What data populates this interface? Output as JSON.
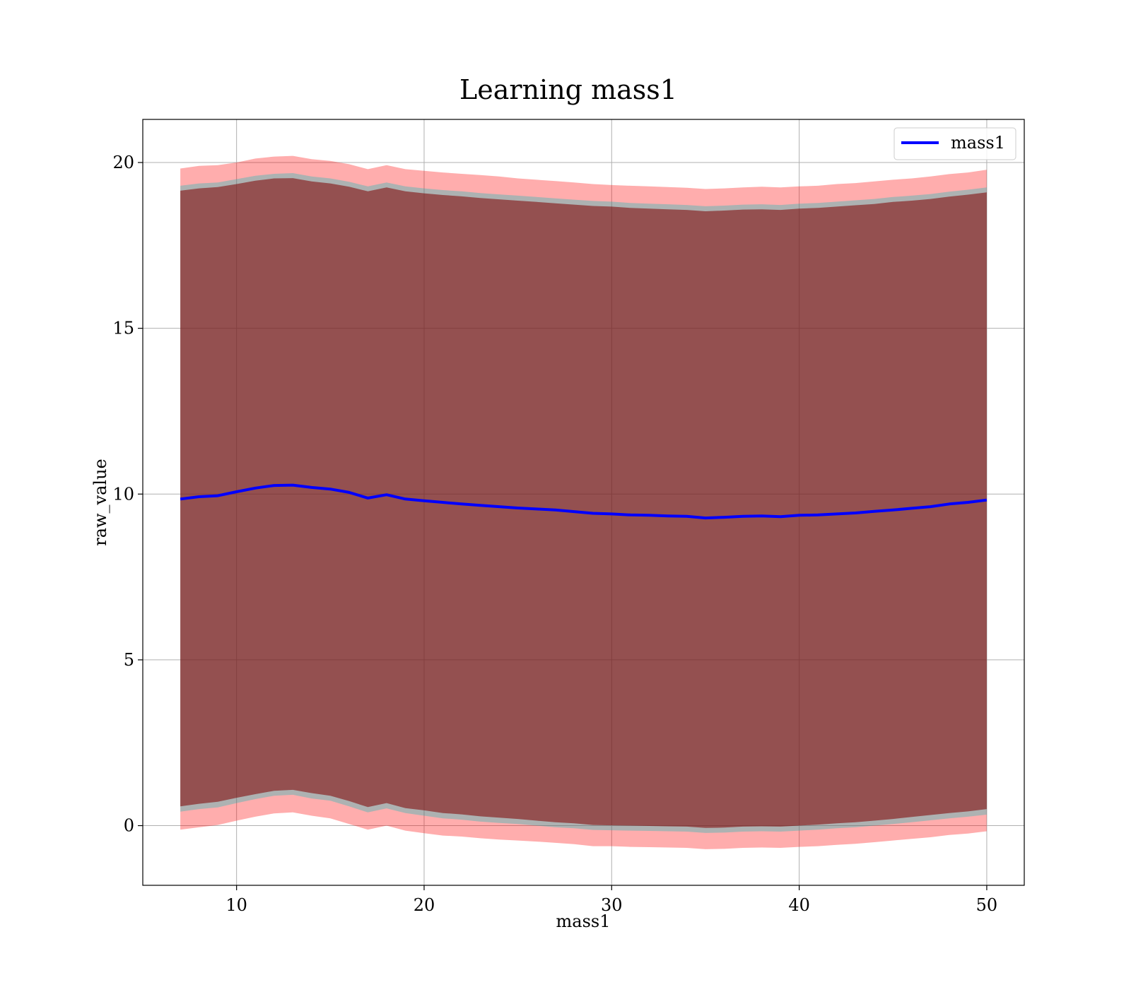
{
  "chart_data": {
    "type": "line",
    "title": "Learning mass1",
    "xlabel": "mass1",
    "ylabel": "raw_value",
    "xlim": [
      5,
      52
    ],
    "ylim": [
      -1.8,
      21.3
    ],
    "xticks": [
      10,
      20,
      30,
      40,
      50
    ],
    "yticks": [
      0,
      5,
      10,
      15,
      20
    ],
    "grid": true,
    "legend": {
      "position": "top-right",
      "entries": [
        "mass1"
      ]
    },
    "x": [
      7,
      8,
      9,
      10,
      11,
      12,
      13,
      14,
      15,
      16,
      17,
      18,
      19,
      20,
      21,
      22,
      23,
      24,
      25,
      26,
      27,
      28,
      29,
      30,
      31,
      32,
      33,
      34,
      35,
      36,
      37,
      38,
      39,
      40,
      41,
      42,
      43,
      44,
      45,
      46,
      47,
      48,
      49,
      50
    ],
    "series": [
      {
        "name": "mass1",
        "color": "#0000ff",
        "values": [
          9.85,
          9.92,
          9.95,
          10.07,
          10.18,
          10.26,
          10.27,
          10.2,
          10.15,
          10.05,
          9.88,
          9.98,
          9.85,
          9.8,
          9.75,
          9.7,
          9.66,
          9.62,
          9.58,
          9.55,
          9.52,
          9.47,
          9.42,
          9.4,
          9.37,
          9.36,
          9.34,
          9.33,
          9.28,
          9.3,
          9.33,
          9.34,
          9.32,
          9.36,
          9.37,
          9.4,
          9.43,
          9.48,
          9.52,
          9.57,
          9.62,
          9.7,
          9.75,
          9.82
        ]
      }
    ],
    "bands": [
      {
        "color": "#ff0000",
        "opacity": 0.32,
        "lower": [
          -0.12,
          -0.05,
          0.02,
          0.15,
          0.27,
          0.37,
          0.4,
          0.3,
          0.22,
          0.05,
          -0.12,
          0.0,
          -0.15,
          -0.23,
          -0.3,
          -0.33,
          -0.38,
          -0.42,
          -0.45,
          -0.48,
          -0.52,
          -0.56,
          -0.62,
          -0.62,
          -0.64,
          -0.65,
          -0.66,
          -0.67,
          -0.71,
          -0.7,
          -0.67,
          -0.66,
          -0.67,
          -0.64,
          -0.62,
          -0.58,
          -0.55,
          -0.5,
          -0.45,
          -0.4,
          -0.35,
          -0.28,
          -0.24,
          -0.17
        ],
        "upper": [
          19.82,
          19.9,
          19.92,
          20.0,
          20.12,
          20.18,
          20.2,
          20.1,
          20.05,
          19.95,
          19.8,
          19.92,
          19.8,
          19.75,
          19.7,
          19.66,
          19.62,
          19.58,
          19.52,
          19.48,
          19.44,
          19.4,
          19.35,
          19.32,
          19.3,
          19.28,
          19.26,
          19.24,
          19.2,
          19.22,
          19.25,
          19.27,
          19.25,
          19.28,
          19.3,
          19.35,
          19.38,
          19.43,
          19.48,
          19.52,
          19.58,
          19.65,
          19.7,
          19.78
        ]
      },
      {
        "color": "#00bfbf",
        "opacity": 0.32,
        "lower": [
          0.42,
          0.5,
          0.55,
          0.68,
          0.8,
          0.9,
          0.93,
          0.82,
          0.75,
          0.58,
          0.4,
          0.52,
          0.38,
          0.3,
          0.22,
          0.18,
          0.12,
          0.08,
          0.05,
          0.0,
          -0.05,
          -0.08,
          -0.13,
          -0.14,
          -0.15,
          -0.16,
          -0.17,
          -0.18,
          -0.22,
          -0.21,
          -0.18,
          -0.17,
          -0.18,
          -0.15,
          -0.12,
          -0.08,
          -0.05,
          0.0,
          0.05,
          0.1,
          0.16,
          0.22,
          0.27,
          0.33
        ],
        "upper": [
          19.3,
          19.37,
          19.4,
          19.5,
          19.6,
          19.66,
          19.68,
          19.58,
          19.52,
          19.42,
          19.28,
          19.4,
          19.28,
          19.22,
          19.17,
          19.13,
          19.08,
          19.04,
          19.0,
          18.96,
          18.92,
          18.88,
          18.84,
          18.82,
          18.78,
          18.76,
          18.74,
          18.72,
          18.68,
          18.7,
          18.73,
          18.74,
          18.72,
          18.76,
          18.78,
          18.82,
          18.86,
          18.9,
          18.96,
          19.0,
          19.05,
          19.12,
          19.18,
          19.25
        ]
      },
      {
        "color": "#800000",
        "opacity": 0.55,
        "lower": [
          0.58,
          0.66,
          0.72,
          0.84,
          0.95,
          1.05,
          1.08,
          0.98,
          0.9,
          0.74,
          0.56,
          0.68,
          0.53,
          0.46,
          0.38,
          0.34,
          0.28,
          0.24,
          0.2,
          0.15,
          0.1,
          0.07,
          0.02,
          0.01,
          0.0,
          -0.01,
          -0.02,
          -0.03,
          -0.07,
          -0.06,
          -0.03,
          -0.02,
          -0.03,
          0.0,
          0.03,
          0.07,
          0.1,
          0.15,
          0.2,
          0.26,
          0.32,
          0.38,
          0.43,
          0.5
        ],
        "upper": [
          19.15,
          19.22,
          19.26,
          19.35,
          19.45,
          19.52,
          19.53,
          19.43,
          19.37,
          19.27,
          19.13,
          19.25,
          19.13,
          19.07,
          19.02,
          18.98,
          18.93,
          18.89,
          18.85,
          18.81,
          18.77,
          18.73,
          18.69,
          18.67,
          18.63,
          18.61,
          18.59,
          18.57,
          18.53,
          18.55,
          18.58,
          18.59,
          18.57,
          18.61,
          18.63,
          18.67,
          18.71,
          18.75,
          18.81,
          18.85,
          18.9,
          18.97,
          19.03,
          19.1
        ]
      }
    ]
  }
}
